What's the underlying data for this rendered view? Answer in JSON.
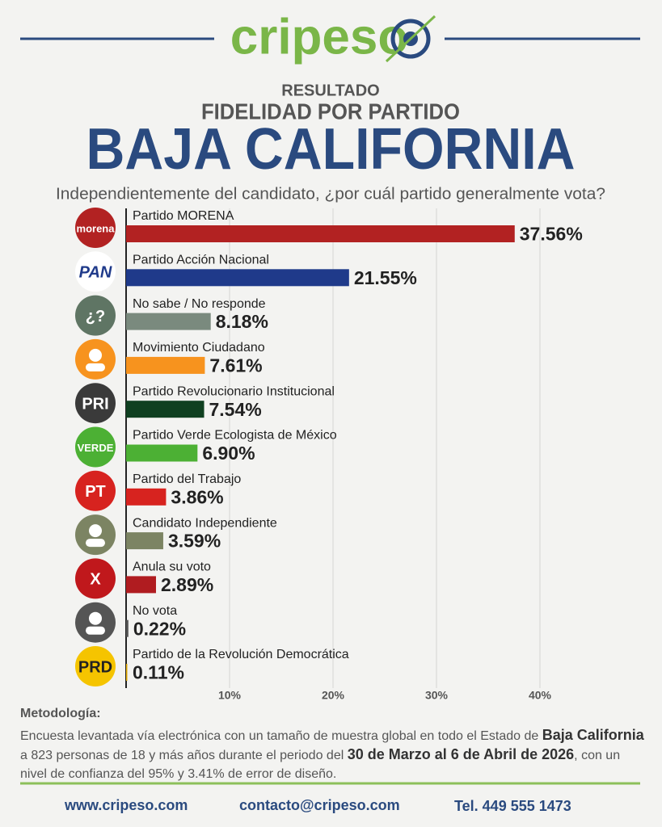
{
  "header": {
    "brand": "cripeso",
    "kicker": "RESULTADO",
    "headline": "FIDELIDAD POR PARTIDO",
    "region": "BAJA CALIFORNIA"
  },
  "chart_data": {
    "type": "bar",
    "orientation": "horizontal",
    "title": "Independientemente del candidato, ¿por cuál partido generalmente vota?",
    "categories": [
      "Partido MORENA",
      "Partido Acción Nacional",
      "No sabe / No responde",
      "Movimiento Ciudadano",
      "Partido Revolucionario Institucional",
      "Partido Verde Ecologista de México",
      "Partido del Trabajo",
      "Candidato Independiente",
      "Anula su voto",
      "No vota",
      "Partido de la Revolución Democrática"
    ],
    "values": [
      37.56,
      21.55,
      8.18,
      7.61,
      7.54,
      6.9,
      3.86,
      3.59,
      2.89,
      0.22,
      0.11
    ],
    "value_labels": [
      "37.56%",
      "21.55%",
      "8.18%",
      "7.61%",
      "7.54%",
      "6.90%",
      "3.86%",
      "3.59%",
      "2.89%",
      "0.22%",
      "0.11%"
    ],
    "colors": [
      "#b22222",
      "#1f3a8a",
      "#7a8a7e",
      "#f7931e",
      "#0f4020",
      "#4cb034",
      "#d7231f",
      "#7c8463",
      "#b01c20",
      "#555555",
      "#e0a800"
    ],
    "logo_texts": [
      "morena",
      "PAN",
      "¿?",
      null,
      "PRI",
      "VERDE",
      "PT",
      null,
      "X",
      null,
      "PRD"
    ],
    "logo_colors": [
      "#b22222",
      "#ffffff",
      "#5f7564",
      "#f7931e",
      "#3a3a3a",
      "#4cb034",
      "#d7231f",
      "#7c8463",
      "#c0181c",
      "#555555",
      "#f5c400"
    ],
    "xlim": [
      0,
      50
    ],
    "xticks": [
      {
        "value": 10,
        "label": "10%"
      },
      {
        "value": 20,
        "label": "20%"
      },
      {
        "value": 30,
        "label": "30%"
      },
      {
        "value": 40,
        "label": "40%"
      }
    ],
    "grid": true
  },
  "methodology": {
    "heading": "Metodología:",
    "parts": [
      {
        "text": "Encuesta levantada vía electrónica con un tamaño de muestra global en todo el Estado de ",
        "bold": false
      },
      {
        "text": "Baja California",
        "bold": true
      },
      {
        "text": " a 823 personas de 18 y más años durante el periodo del ",
        "bold": false
      },
      {
        "text": "30 de Marzo al 6 de Abril de 2026",
        "bold": true
      },
      {
        "text": ", con un nivel de confianza del 95% y 3.41% de error de diseño.",
        "bold": false
      }
    ]
  },
  "footer": {
    "web": "www.cripeso.com",
    "email": "contacto@cripeso.com",
    "phone": "Tel. 449 555 1473"
  }
}
